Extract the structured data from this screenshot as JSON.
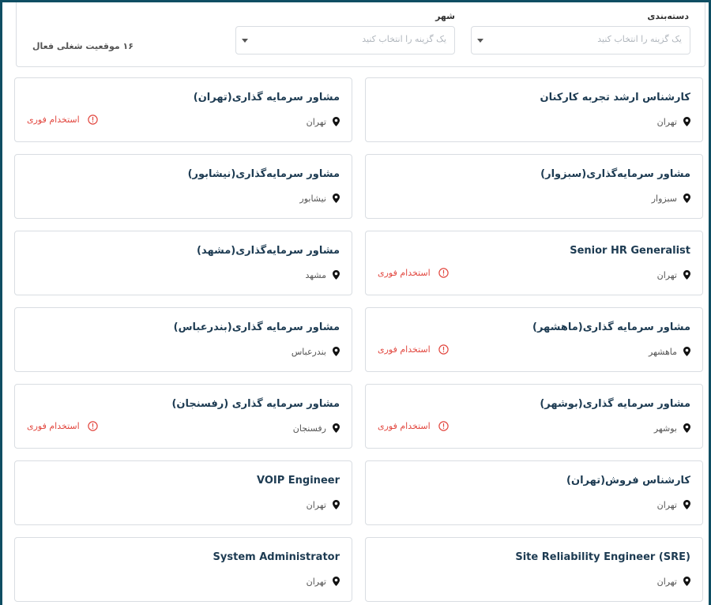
{
  "filters": {
    "category": {
      "label": "دسته‌بندی",
      "placeholder": "یک گزینه را انتخاب کنید"
    },
    "city": {
      "label": "شهر",
      "placeholder": "یک گزینه را انتخاب کنید"
    },
    "active_count": "۱۶ موقعیت شغلی فعال"
  },
  "urgent_label": "استخدام فوری",
  "jobs": [
    {
      "title": "مشاور سرمایه گذاری(تهران)",
      "location": "تهران",
      "urgent": true
    },
    {
      "title": "کارشناس ارشد تجربه کارکنان",
      "location": "تهران",
      "urgent": false
    },
    {
      "title": "مشاور سرمایه‌گذاری(نیشابور)",
      "location": "نیشابور",
      "urgent": false
    },
    {
      "title": "مشاور سرمایه‌گذاری(سبزوار)",
      "location": "سبزوار",
      "urgent": false
    },
    {
      "title": "مشاور سرمایه‌گذاری(مشهد)",
      "location": "مشهد",
      "urgent": false
    },
    {
      "title": "Senior HR Generalist",
      "location": "تهران",
      "urgent": true
    },
    {
      "title": "مشاور سرمایه گذاری(بندرعباس)",
      "location": "بندرعباس",
      "urgent": false
    },
    {
      "title": "مشاور سرمایه گذاری(ماهشهر)",
      "location": "ماهشهر",
      "urgent": true
    },
    {
      "title": "مشاور سرمایه گذاری (رفسنجان)",
      "location": "رفسنجان",
      "urgent": true
    },
    {
      "title": "مشاور سرمایه گذاری(بوشهر)",
      "location": "بوشهر",
      "urgent": true
    },
    {
      "title": "VOIP Engineer",
      "location": "تهران",
      "urgent": false
    },
    {
      "title": "کارشناس فروش(تهران)",
      "location": "تهران",
      "urgent": false
    },
    {
      "title": "System Administrator",
      "location": "تهران",
      "urgent": false
    },
    {
      "title": "Site Reliability Engineer (SRE)",
      "location": "تهران",
      "urgent": false
    }
  ]
}
